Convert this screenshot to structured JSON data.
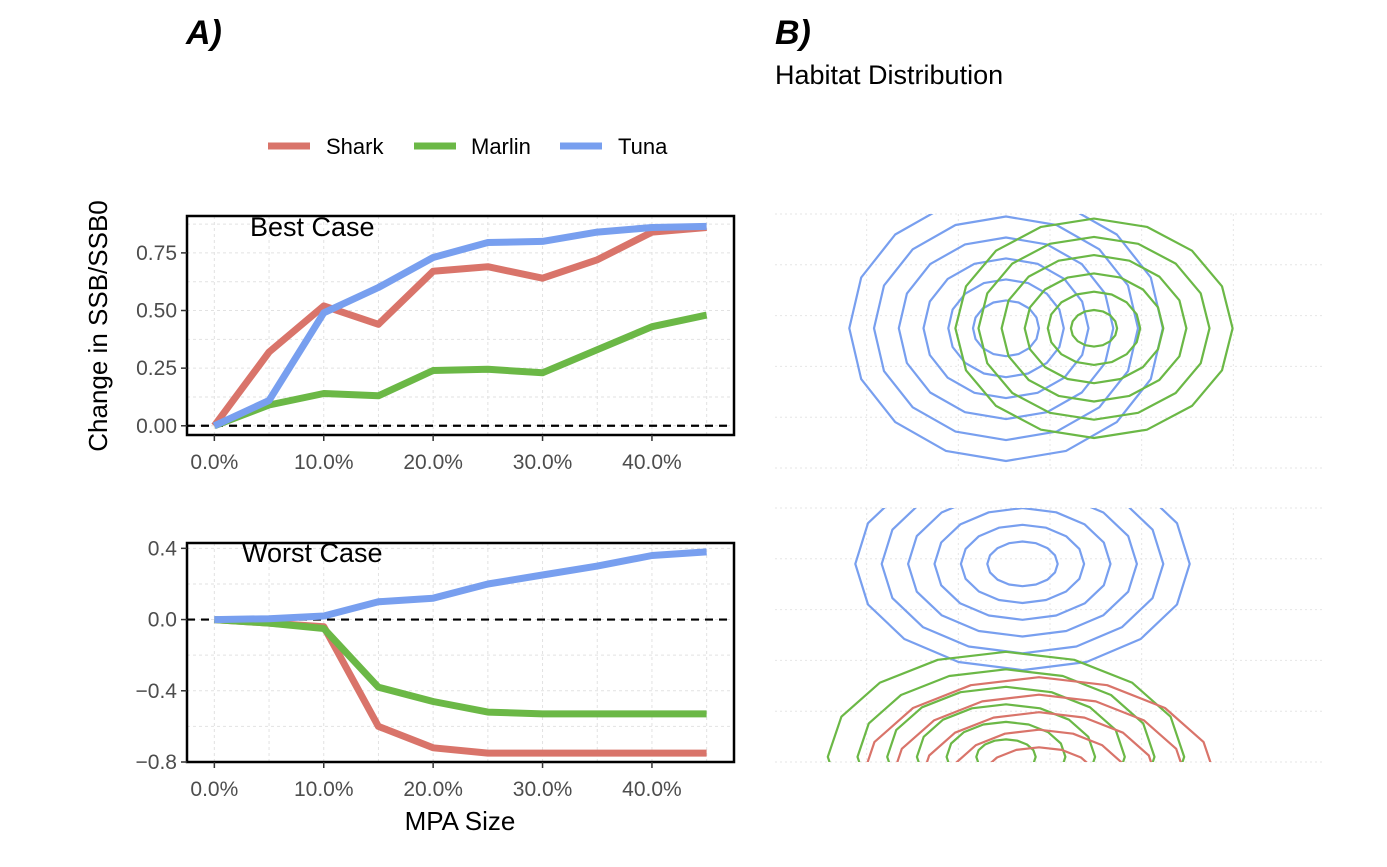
{
  "figure": {
    "panel_a_tag": "A)",
    "panel_b_tag": "B)",
    "panel_b_subtitle": "Habitat Distribution"
  },
  "legend": {
    "items": [
      {
        "label": "Shark",
        "color": "#D9746A"
      },
      {
        "label": "Marlin",
        "color": "#6BB846"
      },
      {
        "label": "Tuna",
        "color": "#789FEF"
      }
    ]
  },
  "chart_data": [
    {
      "type": "line",
      "title": "Best Case",
      "xlabel": "MPA Size",
      "ylabel": "Change in SSB/SSB0",
      "x": [
        0,
        5,
        10,
        15,
        20,
        25,
        30,
        35,
        40,
        45
      ],
      "xlim": [
        -2.5,
        47.5
      ],
      "ylim": [
        -0.04,
        0.91
      ],
      "xticks": [
        0,
        10,
        20,
        30,
        40
      ],
      "xtick_labels": [
        "0.0%",
        "10.0%",
        "20.0%",
        "30.0%",
        "40.0%"
      ],
      "yticks": [
        0,
        0.25,
        0.5,
        0.75
      ],
      "ytick_labels": [
        "0.00",
        "0.25",
        "0.50",
        "0.75"
      ],
      "reference_line": 0,
      "grid": true,
      "series": [
        {
          "name": "Shark",
          "color": "#D9746A",
          "values": [
            0.0,
            0.32,
            0.52,
            0.44,
            0.67,
            0.69,
            0.64,
            0.72,
            0.84,
            0.86
          ]
        },
        {
          "name": "Marlin",
          "color": "#6BB846",
          "values": [
            0.0,
            0.09,
            0.14,
            0.13,
            0.24,
            0.245,
            0.23,
            0.33,
            0.43,
            0.48
          ]
        },
        {
          "name": "Tuna",
          "color": "#789FEF",
          "values": [
            0.0,
            0.11,
            0.49,
            0.6,
            0.73,
            0.795,
            0.8,
            0.84,
            0.86,
            0.865
          ]
        }
      ]
    },
    {
      "type": "line",
      "title": "Worst Case",
      "xlabel": "MPA Size",
      "ylabel": "Change in SSB/SSB0",
      "x": [
        0,
        5,
        10,
        15,
        20,
        25,
        30,
        35,
        40,
        45
      ],
      "xlim": [
        -2.5,
        47.5
      ],
      "ylim": [
        -0.8,
        0.43
      ],
      "xticks": [
        0,
        10,
        20,
        30,
        40
      ],
      "xtick_labels": [
        "0.0%",
        "10.0%",
        "20.0%",
        "30.0%",
        "40.0%"
      ],
      "yticks": [
        -0.8,
        -0.4,
        0.0,
        0.4
      ],
      "ytick_labels": [
        "−0.8",
        "−0.4",
        "0.0",
        "0.4"
      ],
      "reference_line": 0,
      "grid": true,
      "series": [
        {
          "name": "Shark",
          "color": "#D9746A",
          "values": [
            0.0,
            -0.02,
            -0.04,
            -0.6,
            -0.72,
            -0.75,
            -0.75,
            -0.75,
            -0.75,
            -0.75
          ]
        },
        {
          "name": "Marlin",
          "color": "#6BB846",
          "values": [
            0.0,
            -0.02,
            -0.05,
            -0.38,
            -0.46,
            -0.52,
            -0.53,
            -0.53,
            -0.53,
            -0.53
          ]
        },
        {
          "name": "Tuna",
          "color": "#789FEF",
          "values": [
            0.0,
            0.005,
            0.02,
            0.1,
            0.12,
            0.2,
            0.25,
            0.3,
            0.36,
            0.38
          ]
        }
      ]
    },
    {
      "type": "contour",
      "scenario": "Best Case",
      "domain": [
        0,
        1
      ],
      "grid": true,
      "series": [
        {
          "name": "Tuna",
          "color": "#789FEF",
          "center": [
            0.42,
            0.55
          ],
          "spread": [
            0.3,
            0.55
          ],
          "levels": [
            0.2,
            0.35,
            0.5,
            0.65,
            0.8,
            0.95
          ]
        },
        {
          "name": "Marlin",
          "color": "#6BB846",
          "center": [
            0.58,
            0.55
          ],
          "spread": [
            0.28,
            0.48
          ],
          "levels": [
            0.15,
            0.3,
            0.45,
            0.6,
            0.75,
            0.9
          ]
        }
      ]
    },
    {
      "type": "contour",
      "scenario": "Worst Case",
      "domain": [
        0,
        1
      ],
      "grid": true,
      "series": [
        {
          "name": "Tuna",
          "color": "#789FEF",
          "center": [
            0.45,
            0.78
          ],
          "spread": [
            0.32,
            0.44
          ],
          "levels": [
            0.2,
            0.35,
            0.5,
            0.65,
            0.8,
            0.95
          ]
        },
        {
          "name": "Marlin",
          "color": "#6BB846",
          "center": [
            0.42,
            0.02
          ],
          "spread": [
            0.36,
            0.46
          ],
          "levels": [
            0.15,
            0.3,
            0.45,
            0.6,
            0.75,
            0.9
          ]
        },
        {
          "name": "Shark",
          "color": "#D9746A",
          "center": [
            0.48,
            -0.08
          ],
          "spread": [
            0.36,
            0.46
          ],
          "levels": [
            0.15,
            0.3,
            0.45,
            0.6,
            0.75,
            0.9
          ]
        }
      ]
    }
  ]
}
